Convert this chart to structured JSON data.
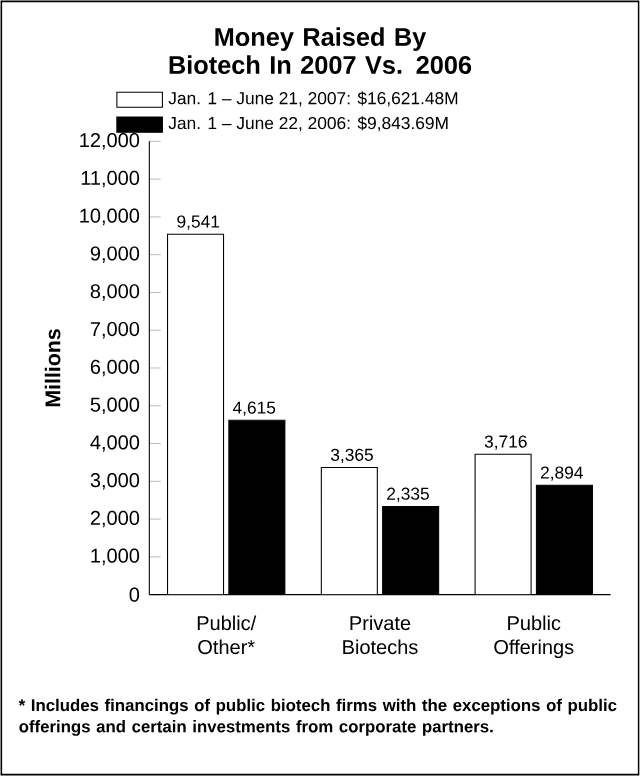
{
  "chart_data": {
    "type": "bar",
    "title": "Money Raised By Biotech In 2007 Vs. 2006",
    "ylabel": "Millions",
    "categories": [
      "Public/ Other*",
      "Private Biotechs",
      "Public Offerings"
    ],
    "series": [
      {
        "name": "Jan. 1 – June 21, 2007: $16,621.48M",
        "color": "#ffffff",
        "values": [
          9541,
          3365,
          3716
        ],
        "value_labels": [
          "9,541",
          "3,365",
          "3,716"
        ]
      },
      {
        "name": "Jan. 1 – June 22, 2006: $9,843.69M",
        "color": "#000000",
        "values": [
          4615,
          2335,
          2894
        ],
        "value_labels": [
          "4,615",
          "2,335",
          "2,894"
        ]
      }
    ],
    "ylim": [
      0,
      12000
    ],
    "yticks": [
      {
        "value": 0,
        "label": "0"
      },
      {
        "value": 1000,
        "label": "1,000"
      },
      {
        "value": 2000,
        "label": "2,000"
      },
      {
        "value": 3000,
        "label": "3,000"
      },
      {
        "value": 4000,
        "label": "4,000"
      },
      {
        "value": 5000,
        "label": "5,000"
      },
      {
        "value": 6000,
        "label": "6,000"
      },
      {
        "value": 7000,
        "label": "7,000"
      },
      {
        "value": 8000,
        "label": "8,000"
      },
      {
        "value": 9000,
        "label": "9,000"
      },
      {
        "value": 10000,
        "label": "10,000"
      },
      {
        "value": 11000,
        "label": "11,000"
      },
      {
        "value": 12000,
        "label": "12,000"
      }
    ],
    "legend": "top left",
    "annotations": [
      "* Includes financings of public biotech firms with the exceptions of public offerings and certain investments from corporate partners."
    ]
  }
}
